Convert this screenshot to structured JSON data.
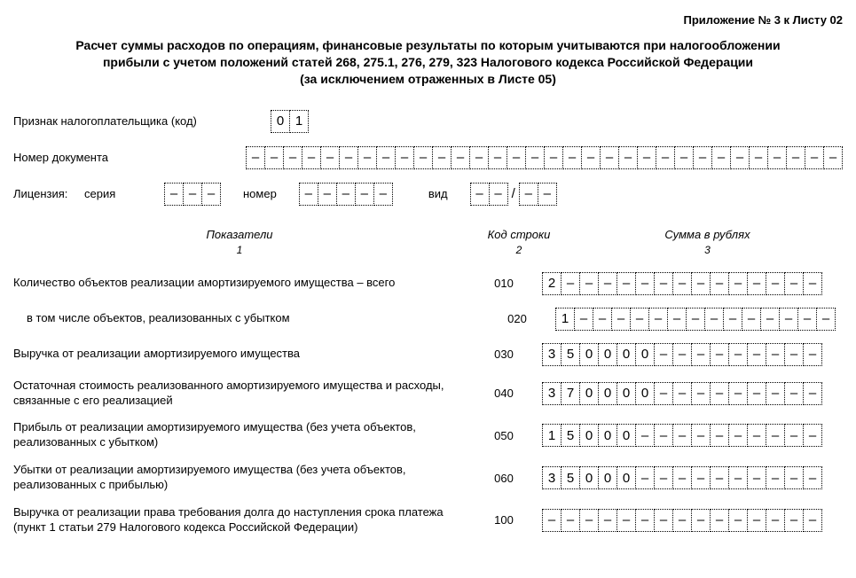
{
  "header": {
    "attachment": "Приложение № 3 к Листу 02",
    "title_line1": "Расчет суммы расходов по операциям, финансовые результаты по которым учитываются при налогообложении",
    "title_line2": "прибыли с учетом положений статей 268, 275.1, 276, 279, 323 Налогового кодекса Российской Федерации",
    "title_line3": "(за исключением отраженных в Листе 05)"
  },
  "fields": {
    "taxpayer_sign_label": "Признак налогоплательщика (код)",
    "taxpayer_sign_value": [
      "0",
      "1"
    ],
    "doc_number_label": "Номер документа",
    "doc_number_value": [
      "–",
      "–",
      "–",
      "–",
      "–",
      "–",
      "–",
      "–",
      "–",
      "–",
      "–",
      "–",
      "–",
      "–",
      "–",
      "–",
      "–",
      "–",
      "–",
      "–",
      "–",
      "–",
      "–",
      "–",
      "–",
      "–",
      "–",
      "–",
      "–",
      "–",
      "–",
      "–"
    ],
    "license_label": "Лицензия:",
    "license_series_label": "серия",
    "license_series_value": [
      "–",
      "–",
      "–"
    ],
    "license_number_label": "номер",
    "license_number_value": [
      "–",
      "–",
      "–",
      "–",
      "–"
    ],
    "license_type_label": "вид",
    "license_type_value1": [
      "–",
      "–"
    ],
    "license_type_value2": [
      "–",
      "–"
    ]
  },
  "columns": {
    "col1": "Показатели",
    "col2": "Код строки",
    "col3": "Сумма в рублях",
    "num1": "1",
    "num2": "2",
    "num3": "3"
  },
  "rows": [
    {
      "label": "Количество объектов реализации амортизируемого имущества – всего",
      "code": "010",
      "value": [
        "2",
        "–",
        "–",
        "–",
        "–",
        "–",
        "–",
        "–",
        "–",
        "–",
        "–",
        "–",
        "–",
        "–",
        "–"
      ],
      "indent": false
    },
    {
      "label": "в том числе объектов, реализованных с убытком",
      "code": "020",
      "value": [
        "1",
        "–",
        "–",
        "–",
        "–",
        "–",
        "–",
        "–",
        "–",
        "–",
        "–",
        "–",
        "–",
        "–",
        "–"
      ],
      "indent": true
    },
    {
      "label": "Выручка от реализации амортизируемого имущества",
      "code": "030",
      "value": [
        "3",
        "5",
        "0",
        "0",
        "0",
        "0",
        "–",
        "–",
        "–",
        "–",
        "–",
        "–",
        "–",
        "–",
        "–"
      ],
      "indent": false
    },
    {
      "label": "Остаточная стоимость реализованного амортизируемого имущества и расходы, связанные с его реализацией",
      "code": "040",
      "value": [
        "3",
        "7",
        "0",
        "0",
        "0",
        "0",
        "–",
        "–",
        "–",
        "–",
        "–",
        "–",
        "–",
        "–",
        "–"
      ],
      "indent": false
    },
    {
      "label": "Прибыль от реализации амортизируемого имущества (без учета объектов, реализованных с убытком)",
      "code": "050",
      "value": [
        "1",
        "5",
        "0",
        "0",
        "0",
        "–",
        "–",
        "–",
        "–",
        "–",
        "–",
        "–",
        "–",
        "–",
        "–"
      ],
      "indent": false
    },
    {
      "label": "Убытки от реализации амортизируемого имущества (без учета объектов, реализованных с прибылью)",
      "code": "060",
      "value": [
        "3",
        "5",
        "0",
        "0",
        "0",
        "–",
        "–",
        "–",
        "–",
        "–",
        "–",
        "–",
        "–",
        "–",
        "–"
      ],
      "indent": false
    },
    {
      "label": "Выручка от реализации права требования долга до наступления срока платежа (пункт 1 статьи 279 Налогового кодекса Российской Федерации)",
      "code": "100",
      "value": [
        "–",
        "–",
        "–",
        "–",
        "–",
        "–",
        "–",
        "–",
        "–",
        "–",
        "–",
        "–",
        "–",
        "–",
        "–"
      ],
      "indent": false
    }
  ]
}
